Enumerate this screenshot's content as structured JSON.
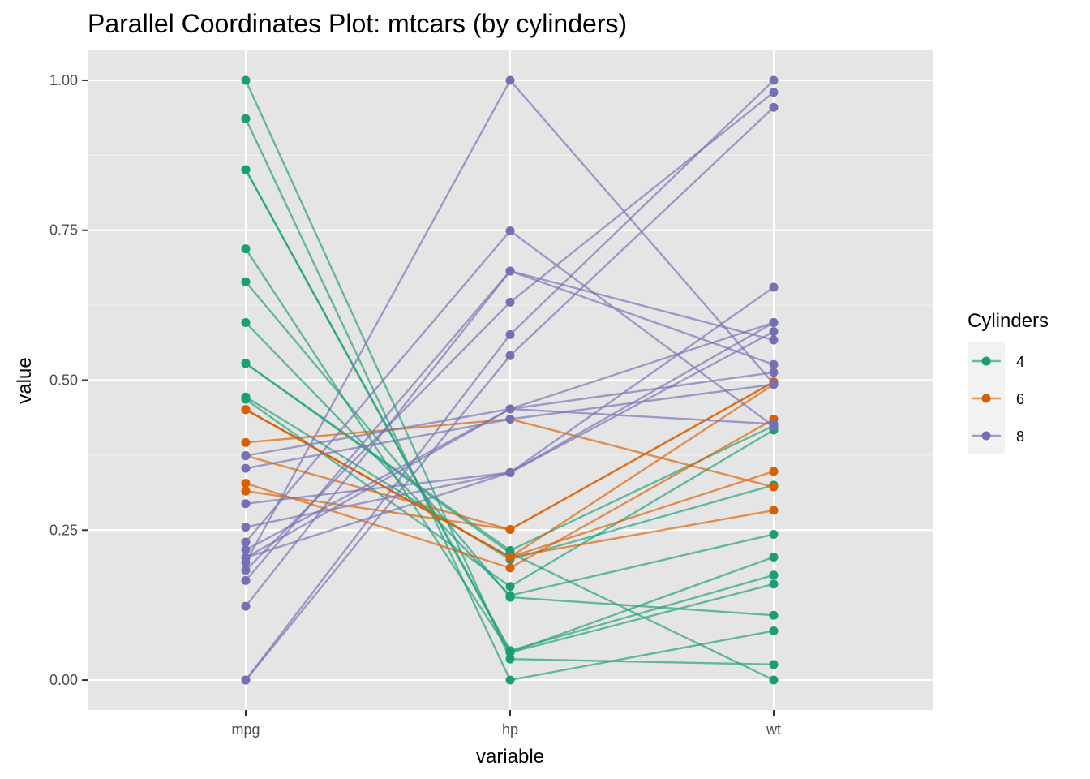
{
  "chart_data": {
    "type": "parallel-coordinates",
    "title": "Parallel Coordinates Plot: mtcars (by cylinders)",
    "xlabel": "variable",
    "ylabel": "value",
    "variables": [
      "mpg",
      "hp",
      "wt"
    ],
    "ylim": [
      -0.05,
      1.05
    ],
    "yticks": [
      0.0,
      0.25,
      0.5,
      0.75,
      1.0
    ],
    "ytick_labels": [
      "0.00",
      "0.25",
      "0.50",
      "0.75",
      "1.00"
    ],
    "grid": true,
    "legend": {
      "title": "Cylinders",
      "position": "right",
      "entries": [
        "4",
        "6",
        "8"
      ]
    },
    "colors": {
      "4": "#1b9e77",
      "6": "#d95f02",
      "8": "#7570b3"
    },
    "series": [
      {
        "group": "4",
        "values": [
          0.851,
          0.049,
          0.175
        ]
      },
      {
        "group": "4",
        "values": [
          0.596,
          0.141,
          0.243
        ]
      },
      {
        "group": "4",
        "values": [
          0.528,
          0.216,
          0.424
        ]
      },
      {
        "group": "4",
        "values": [
          0.468,
          0.156,
          0.417
        ]
      },
      {
        "group": "4",
        "values": [
          0.719,
          0.046,
          0.16
        ]
      },
      {
        "group": "4",
        "values": [
          0.936,
          0.0,
          0.082
        ]
      },
      {
        "group": "4",
        "values": [
          1.0,
          0.035,
          0.026
        ]
      },
      {
        "group": "4",
        "values": [
          0.472,
          0.201,
          0.325
        ]
      },
      {
        "group": "4",
        "values": [
          0.851,
          0.046,
          0.205
        ]
      },
      {
        "group": "4",
        "values": [
          0.664,
          0.138,
          0.108
        ]
      },
      {
        "group": "4",
        "values": [
          0.528,
          0.212,
          0.0
        ]
      },
      {
        "group": "6",
        "values": [
          0.451,
          0.205,
          0.283
        ]
      },
      {
        "group": "6",
        "values": [
          0.451,
          0.205,
          0.348
        ]
      },
      {
        "group": "6",
        "values": [
          0.396,
          0.435,
          0.322
        ]
      },
      {
        "group": "6",
        "values": [
          0.328,
          0.187,
          0.435
        ]
      },
      {
        "group": "6",
        "values": [
          0.374,
          0.251,
          0.497
        ]
      },
      {
        "group": "6",
        "values": [
          0.315,
          0.251,
          0.497
        ]
      },
      {
        "group": "6",
        "values": [
          0.451,
          0.205,
          0.493
        ]
      },
      {
        "group": "8",
        "values": [
          0.353,
          0.435,
          0.493
        ]
      },
      {
        "group": "8",
        "values": [
          0.166,
          0.682,
          0.526
        ]
      },
      {
        "group": "8",
        "values": [
          0.294,
          0.346,
          0.655
        ]
      },
      {
        "group": "8",
        "values": [
          0.255,
          0.346,
          0.581
        ]
      },
      {
        "group": "8",
        "values": [
          0.204,
          0.346,
          0.596
        ]
      },
      {
        "group": "8",
        "values": [
          0.0,
          0.541,
          0.955
        ]
      },
      {
        "group": "8",
        "values": [
          0.0,
          0.576,
          1.0
        ]
      },
      {
        "group": "8",
        "values": [
          0.183,
          0.63,
          0.98
        ]
      },
      {
        "group": "8",
        "values": [
          0.217,
          0.452,
          0.513
        ]
      },
      {
        "group": "8",
        "values": [
          0.204,
          0.452,
          0.427
        ]
      },
      {
        "group": "8",
        "values": [
          0.123,
          0.682,
          0.567
        ]
      },
      {
        "group": "8",
        "values": [
          0.374,
          0.452,
          0.596
        ]
      },
      {
        "group": "8",
        "values": [
          0.23,
          0.749,
          0.423
        ]
      },
      {
        "group": "8",
        "values": [
          0.196,
          1.0,
          0.494
        ]
      }
    ]
  }
}
